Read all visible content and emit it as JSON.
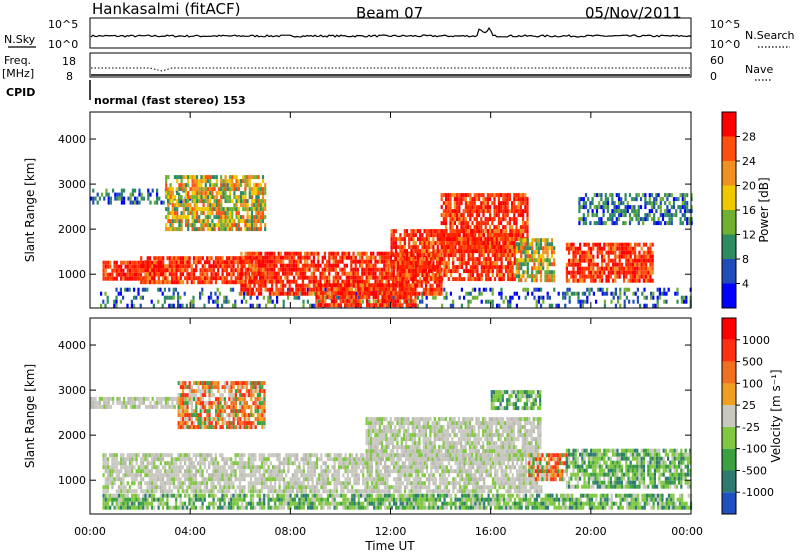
{
  "header": {
    "station": "Hankasalmi (fitACF)",
    "beam": "Beam 07",
    "date": "05/Nov/2011"
  },
  "noise_panel": {
    "left_label": "N.Sky",
    "right_label": "N.Search",
    "ticks": [
      "10^5",
      "10^0"
    ]
  },
  "freq_panel": {
    "left_label_1": "Freq.",
    "left_label_2": "[MHz]",
    "left_ticks": [
      "18",
      "8"
    ],
    "right_label": "Nave",
    "right_ticks": [
      "60",
      "0"
    ]
  },
  "cpid": {
    "label": "CPID",
    "mode": "normal (fast stereo) 153"
  },
  "time_axis": {
    "label": "Time UT",
    "ticks": [
      "00:00",
      "04:00",
      "08:00",
      "12:00",
      "16:00",
      "20:00",
      "00:00"
    ]
  },
  "chart_data": [
    {
      "type": "heatmap",
      "name": "power",
      "ylabel": "Slant Range [km]",
      "yticks": [
        "1000",
        "2000",
        "3000",
        "4000"
      ],
      "ylim": [
        250,
        4600
      ],
      "xlim_hours": [
        0,
        24
      ],
      "colorbar_label": "Power [dB]",
      "colorbar_ticks": [
        "4",
        "8",
        "12",
        "16",
        "20",
        "24",
        "28"
      ],
      "colorbar_colors": [
        "#0000ff",
        "#1f4cb8",
        "#2e8a60",
        "#70b030",
        "#f0c800",
        "#f09020",
        "#ff5010",
        "#ff0000"
      ],
      "regions": [
        {
          "t0": 0.0,
          "t1": 4.0,
          "r0": 2600,
          "r1": 2900,
          "level": "low"
        },
        {
          "t0": 0.4,
          "t1": 24.0,
          "r0": 300,
          "r1": 700,
          "level": "noise"
        },
        {
          "t0": 0.5,
          "t1": 3.0,
          "r0": 900,
          "r1": 1300,
          "level": "high"
        },
        {
          "t0": 2.0,
          "t1": 7.0,
          "r0": 800,
          "r1": 1400,
          "level": "high"
        },
        {
          "t0": 3.0,
          "t1": 7.0,
          "r0": 2000,
          "r1": 3200,
          "level": "mid"
        },
        {
          "t0": 6.0,
          "t1": 14.0,
          "r0": 600,
          "r1": 1500,
          "level": "high"
        },
        {
          "t0": 9.0,
          "t1": 13.0,
          "r0": 350,
          "r1": 800,
          "level": "high"
        },
        {
          "t0": 12.0,
          "t1": 17.0,
          "r0": 900,
          "r1": 2000,
          "level": "high"
        },
        {
          "t0": 14.0,
          "t1": 17.5,
          "r0": 1500,
          "r1": 2800,
          "level": "high"
        },
        {
          "t0": 17.0,
          "t1": 18.5,
          "r0": 900,
          "r1": 1800,
          "level": "mid"
        },
        {
          "t0": 19.0,
          "t1": 22.5,
          "r0": 900,
          "r1": 1700,
          "level": "high"
        },
        {
          "t0": 19.5,
          "t1": 24.0,
          "r0": 2100,
          "r1": 2800,
          "level": "low"
        }
      ]
    },
    {
      "type": "heatmap",
      "name": "velocity",
      "ylabel": "Slant Range [km]",
      "yticks": [
        "1000",
        "2000",
        "3000",
        "4000"
      ],
      "ylim": [
        250,
        4600
      ],
      "xlim_hours": [
        0,
        24
      ],
      "colorbar_label": "Velocity [m s⁻¹]",
      "colorbar_ticks": [
        "1000",
        "500",
        "100",
        "25",
        "-25",
        "-100",
        "-500",
        "-1000"
      ],
      "colorbar_colors": [
        "#2050c0",
        "#2e7a70",
        "#3aa040",
        "#80c840",
        "#c8c8c0",
        "#f0a020",
        "#f07020",
        "#ff3010",
        "#ff0000"
      ],
      "regions": [
        {
          "t0": 0.0,
          "t1": 4.0,
          "r0": 2600,
          "r1": 2850,
          "level": "gray"
        },
        {
          "t0": 0.5,
          "t1": 24.0,
          "r0": 350,
          "r1": 700,
          "level": "green"
        },
        {
          "t0": 0.5,
          "t1": 18.0,
          "r0": 800,
          "r1": 1600,
          "level": "gray"
        },
        {
          "t0": 3.5,
          "t1": 7.0,
          "r0": 2200,
          "r1": 3200,
          "level": "orange"
        },
        {
          "t0": 11.0,
          "t1": 18.0,
          "r0": 1500,
          "r1": 2400,
          "level": "gray"
        },
        {
          "t0": 16.0,
          "t1": 18.0,
          "r0": 2600,
          "r1": 3000,
          "level": "green"
        },
        {
          "t0": 17.5,
          "t1": 19.0,
          "r0": 1000,
          "r1": 1600,
          "level": "orange"
        },
        {
          "t0": 19.0,
          "t1": 24.0,
          "r0": 900,
          "r1": 1700,
          "level": "green"
        }
      ]
    }
  ]
}
